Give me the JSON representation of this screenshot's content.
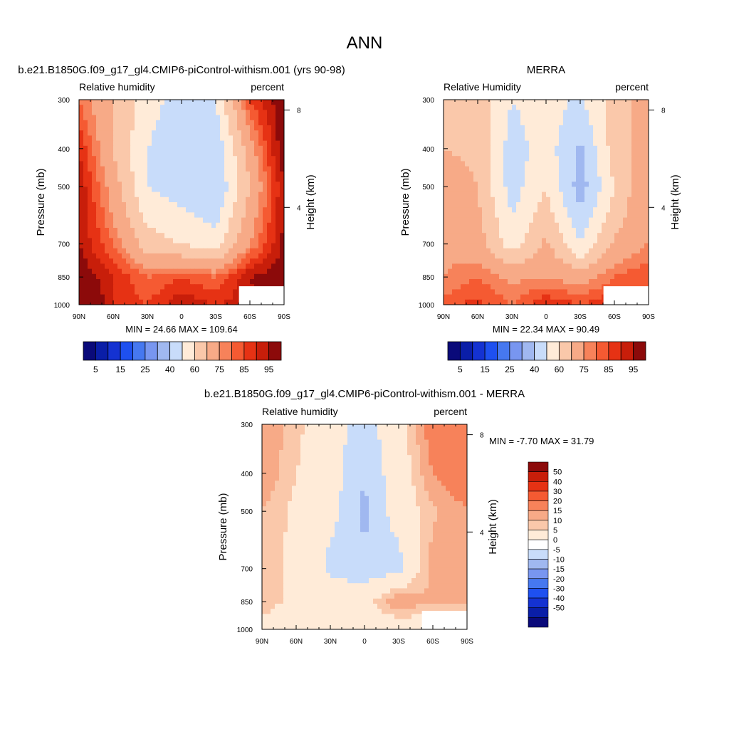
{
  "figure": {
    "title": "ANN"
  },
  "colormaps": {
    "abs": [
      "#0a0a7a",
      "#0a1ea8",
      "#1432d2",
      "#1e50f0",
      "#4678f0",
      "#7896f0",
      "#a0b8f0",
      "#c8dcfa",
      "#ffebd8",
      "#fac8aa",
      "#f7aa87",
      "#f7825a",
      "#f55a32",
      "#e63214",
      "#c81e0a",
      "#8c0a0a"
    ],
    "diff": [
      "#0a0a7a",
      "#0a1ea8",
      "#1432d2",
      "#1e50f0",
      "#4678f0",
      "#7896f0",
      "#a0b8f0",
      "#c8dcfa",
      "#ffffff",
      "#ffebd8",
      "#fac8aa",
      "#f7aa87",
      "#f7825a",
      "#f55a32",
      "#e63214",
      "#c81e0a",
      "#8c0a0a"
    ]
  },
  "chart_data": [
    {
      "type": "heatmap",
      "title": "b.e21.B1850G.f09_g17_gl4.CMIP6-piControl-withism.001 (yrs 90-98)",
      "left_label": "Relative humidity",
      "right_label": "percent",
      "ylabel": "Pressure (mb)",
      "ylabel_right": "Height (km)",
      "x_ticks": [
        "90N",
        "60N",
        "30N",
        "0",
        "30S",
        "60S",
        "90S"
      ],
      "y_ticks": [
        300,
        400,
        500,
        700,
        850,
        1000
      ],
      "height_ticks": [
        8,
        4
      ],
      "stats": "MIN =  24.66  MAX = 109.64",
      "min": 24.66,
      "max": 109.64,
      "colorbar_labels": [
        "5",
        "15",
        "25",
        "40",
        "60",
        "75",
        "85",
        "95"
      ],
      "x": [
        90,
        60,
        30,
        0,
        -30,
        -60,
        -90
      ],
      "y": [
        300,
        400,
        500,
        700,
        850,
        1000
      ],
      "z": [
        [
          75,
          60,
          45,
          35,
          40,
          80,
          95
        ],
        [
          85,
          60,
          40,
          30,
          32,
          65,
          95
        ],
        [
          90,
          65,
          40,
          35,
          30,
          60,
          90
        ],
        [
          90,
          75,
          55,
          50,
          45,
          70,
          92
        ],
        [
          95,
          85,
          75,
          80,
          75,
          90,
          95
        ],
        [
          105,
          85,
          80,
          90,
          85,
          88,
          95
        ]
      ]
    },
    {
      "type": "heatmap",
      "title": "MERRA",
      "left_label": "Relative Humidity",
      "right_label": "percent",
      "ylabel": "Pressure (mb)",
      "ylabel_right": "Height (km)",
      "x_ticks": [
        "90N",
        "60N",
        "30N",
        "0",
        "30S",
        "60S",
        "90S"
      ],
      "y_ticks": [
        300,
        400,
        500,
        700,
        850,
        1000
      ],
      "height_ticks": [
        8,
        4
      ],
      "stats": "MIN =  22.34  MAX =  90.49",
      "min": 22.34,
      "max": 90.49,
      "colorbar_labels": [
        "5",
        "15",
        "25",
        "40",
        "60",
        "75",
        "85",
        "95"
      ],
      "x": [
        90,
        60,
        30,
        0,
        -30,
        -60,
        -90
      ],
      "y": [
        300,
        400,
        500,
        700,
        850,
        1000
      ],
      "z": [
        [
          55,
          55,
          40,
          45,
          38,
          55,
          65
        ],
        [
          60,
          58,
          35,
          45,
          28,
          55,
          65
        ],
        [
          65,
          60,
          35,
          50,
          25,
          50,
          70
        ],
        [
          68,
          65,
          45,
          62,
          40,
          62,
          70
        ],
        [
          70,
          75,
          68,
          70,
          66,
          75,
          80
        ],
        [
          78,
          82,
          75,
          85,
          80,
          85,
          80
        ]
      ]
    },
    {
      "type": "heatmap",
      "title": "b.e21.B1850G.f09_g17_gl4.CMIP6-piControl-withism.001 - MERRA",
      "left_label": "Relative humidity",
      "right_label": "percent",
      "ylabel": "Pressure (mb)",
      "ylabel_right": "Height (km)",
      "x_ticks": [
        "90N",
        "60N",
        "30N",
        "0",
        "30S",
        "60S",
        "90S"
      ],
      "y_ticks": [
        300,
        400,
        500,
        700,
        850,
        1000
      ],
      "height_ticks": [
        8,
        4
      ],
      "stats": "MIN =  -7.70  MAX =  31.79",
      "min": -7.7,
      "max": 31.79,
      "colorbar_labels": [
        "50",
        "40",
        "30",
        "20",
        "15",
        "10",
        "5",
        "0",
        "-5",
        "-10",
        "-15",
        "-20",
        "-30",
        "-40",
        "-50"
      ],
      "x": [
        90,
        60,
        30,
        0,
        -30,
        -60,
        -90
      ],
      "y": [
        300,
        400,
        500,
        700,
        850,
        1000
      ],
      "z": [
        [
          20,
          12,
          3,
          -3,
          5,
          25,
          25
        ],
        [
          20,
          10,
          3,
          -5,
          4,
          20,
          25
        ],
        [
          15,
          8,
          2,
          -6,
          3,
          14,
          20
        ],
        [
          13,
          8,
          -2,
          -4,
          -3,
          18,
          20
        ],
        [
          12,
          9,
          6,
          6,
          20,
          15,
          15
        ],
        [
          8,
          4,
          3,
          3,
          2,
          3,
          15
        ]
      ]
    }
  ]
}
